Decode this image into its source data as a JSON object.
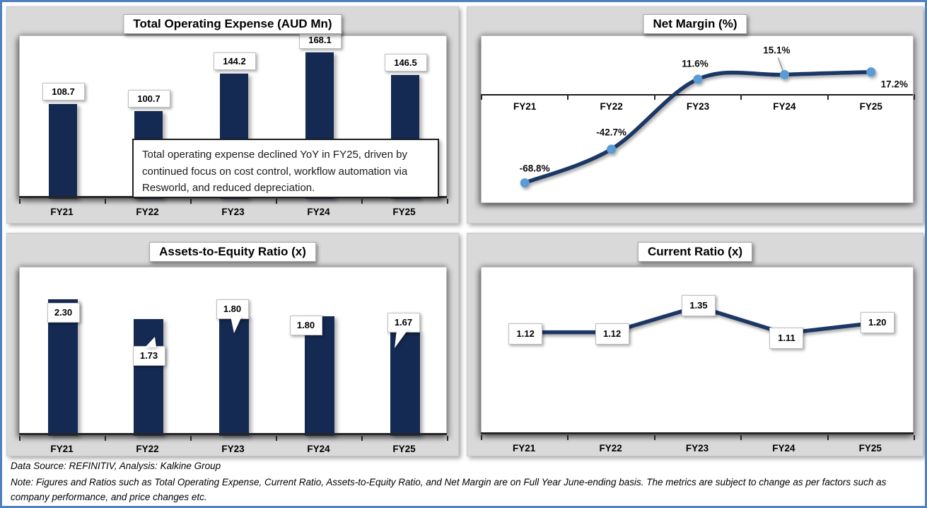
{
  "colors": {
    "frame_border": "#4F81BD",
    "panel_bg": "#D9D9D9",
    "bar": "#152A52",
    "line": "#1B3764",
    "marker": "#5B9BD5",
    "axis": "#262626"
  },
  "footer": {
    "source_line": "Data Source: REFINITIV, Analysis: Kalkine Group",
    "note_line": "Note: Figures and Ratios such as Total Operating Expense, Current Ratio, Assets-to-Equity Ratio, and Net Margin are on Full Year June-ending basis. The metrics are subject to change as per factors such as company performance, and price changes etc."
  },
  "chart_data": [
    {
      "id": "opex",
      "type": "bar",
      "title": "Total Operating Expense (AUD Mn)",
      "categories": [
        "FY21",
        "FY22",
        "FY23",
        "FY24",
        "FY25"
      ],
      "values": [
        108.7,
        100.7,
        144.2,
        168.1,
        146.5
      ],
      "value_labels": [
        "108.7",
        "100.7",
        "144.2",
        "168.1",
        "146.5"
      ],
      "ylabel": "AUD Mn",
      "ylim": [
        0,
        187
      ],
      "grid": false,
      "annotation": "Total operating expense declined YoY in FY25, driven by continued focus on cost control, workflow automation via Resworld, and reduced depreciation."
    },
    {
      "id": "netmargin",
      "type": "line",
      "title": "Net Margin (%)",
      "categories": [
        "FY21",
        "FY22",
        "FY23",
        "FY24",
        "FY25"
      ],
      "values": [
        -68.8,
        -42.7,
        11.6,
        15.1,
        17.2
      ],
      "value_labels": [
        "-68.8%",
        "-42.7%",
        "11.6%",
        "15.1%",
        "17.2%"
      ],
      "ylabel": "%",
      "ylim": [
        -85,
        45
      ],
      "grid": false,
      "markers": true,
      "smooth": true
    },
    {
      "id": "a2e",
      "type": "bar",
      "title": "Assets-to-Equity Ratio (x)",
      "categories": [
        "FY21",
        "FY22",
        "FY23",
        "FY24",
        "FY25"
      ],
      "values": [
        2.3,
        1.73,
        1.8,
        1.8,
        1.67
      ],
      "value_labels": [
        "2.30",
        "1.73",
        "1.80",
        "1.80",
        "1.67"
      ],
      "ylabel": "x",
      "ylim": [
        -1.6,
        3.2
      ],
      "grid": false,
      "label_style": "callout"
    },
    {
      "id": "current",
      "type": "line",
      "title": "Current Ratio (x)",
      "categories": [
        "FY21",
        "FY22",
        "FY23",
        "FY24",
        "FY25"
      ],
      "values": [
        1.12,
        1.12,
        1.35,
        1.11,
        1.2
      ],
      "value_labels": [
        "1.12",
        "1.12",
        "1.35",
        "1.11",
        "1.20"
      ],
      "ylabel": "x",
      "ylim": [
        0.2,
        1.7
      ],
      "grid": false,
      "markers": false,
      "smooth": false,
      "label_style": "box"
    }
  ]
}
